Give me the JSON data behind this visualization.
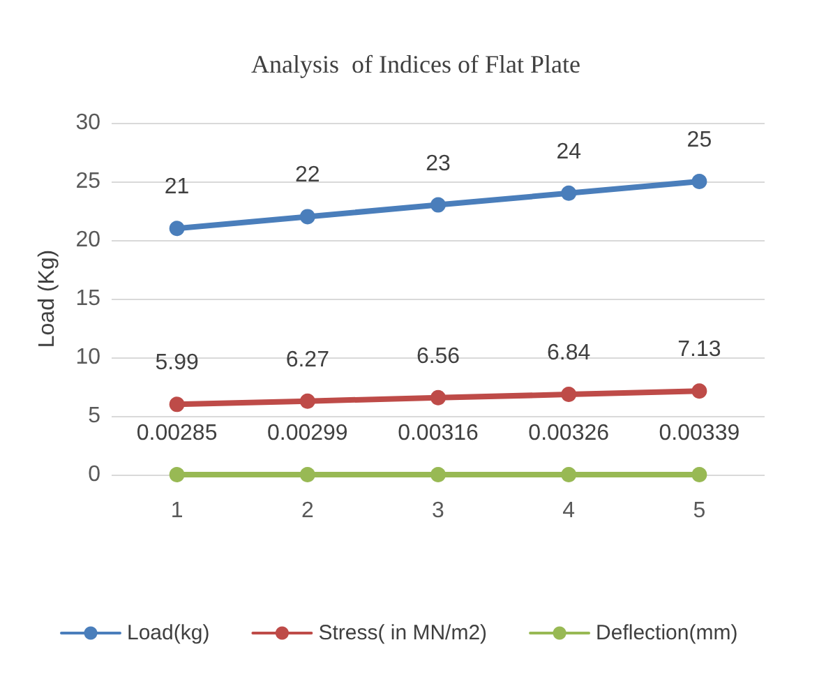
{
  "chart_data": {
    "type": "line",
    "title": "Analysis  of Indices of Flat Plate",
    "ylabel": "Load (Kg)",
    "categories": [
      "1",
      "2",
      "3",
      "4",
      "5"
    ],
    "series": [
      {
        "name": "Load(kg)",
        "color": "#4a7ebb",
        "values": [
          21,
          22,
          23,
          24,
          25
        ]
      },
      {
        "name": "Stress( in MN/m2)",
        "color": "#be4b48",
        "values": [
          5.99,
          6.27,
          6.56,
          6.84,
          7.13
        ]
      },
      {
        "name": "Deflection(mm)",
        "color": "#98b954",
        "values": [
          0.00285,
          0.00299,
          0.00316,
          0.00326,
          0.00339
        ]
      }
    ],
    "ylim": [
      0,
      30
    ],
    "yticks": [
      0,
      5,
      10,
      15,
      20,
      25,
      30
    ],
    "grid": "y",
    "legend": "bottom",
    "marker": "circle",
    "line_style": "solid",
    "data_labels": true
  }
}
